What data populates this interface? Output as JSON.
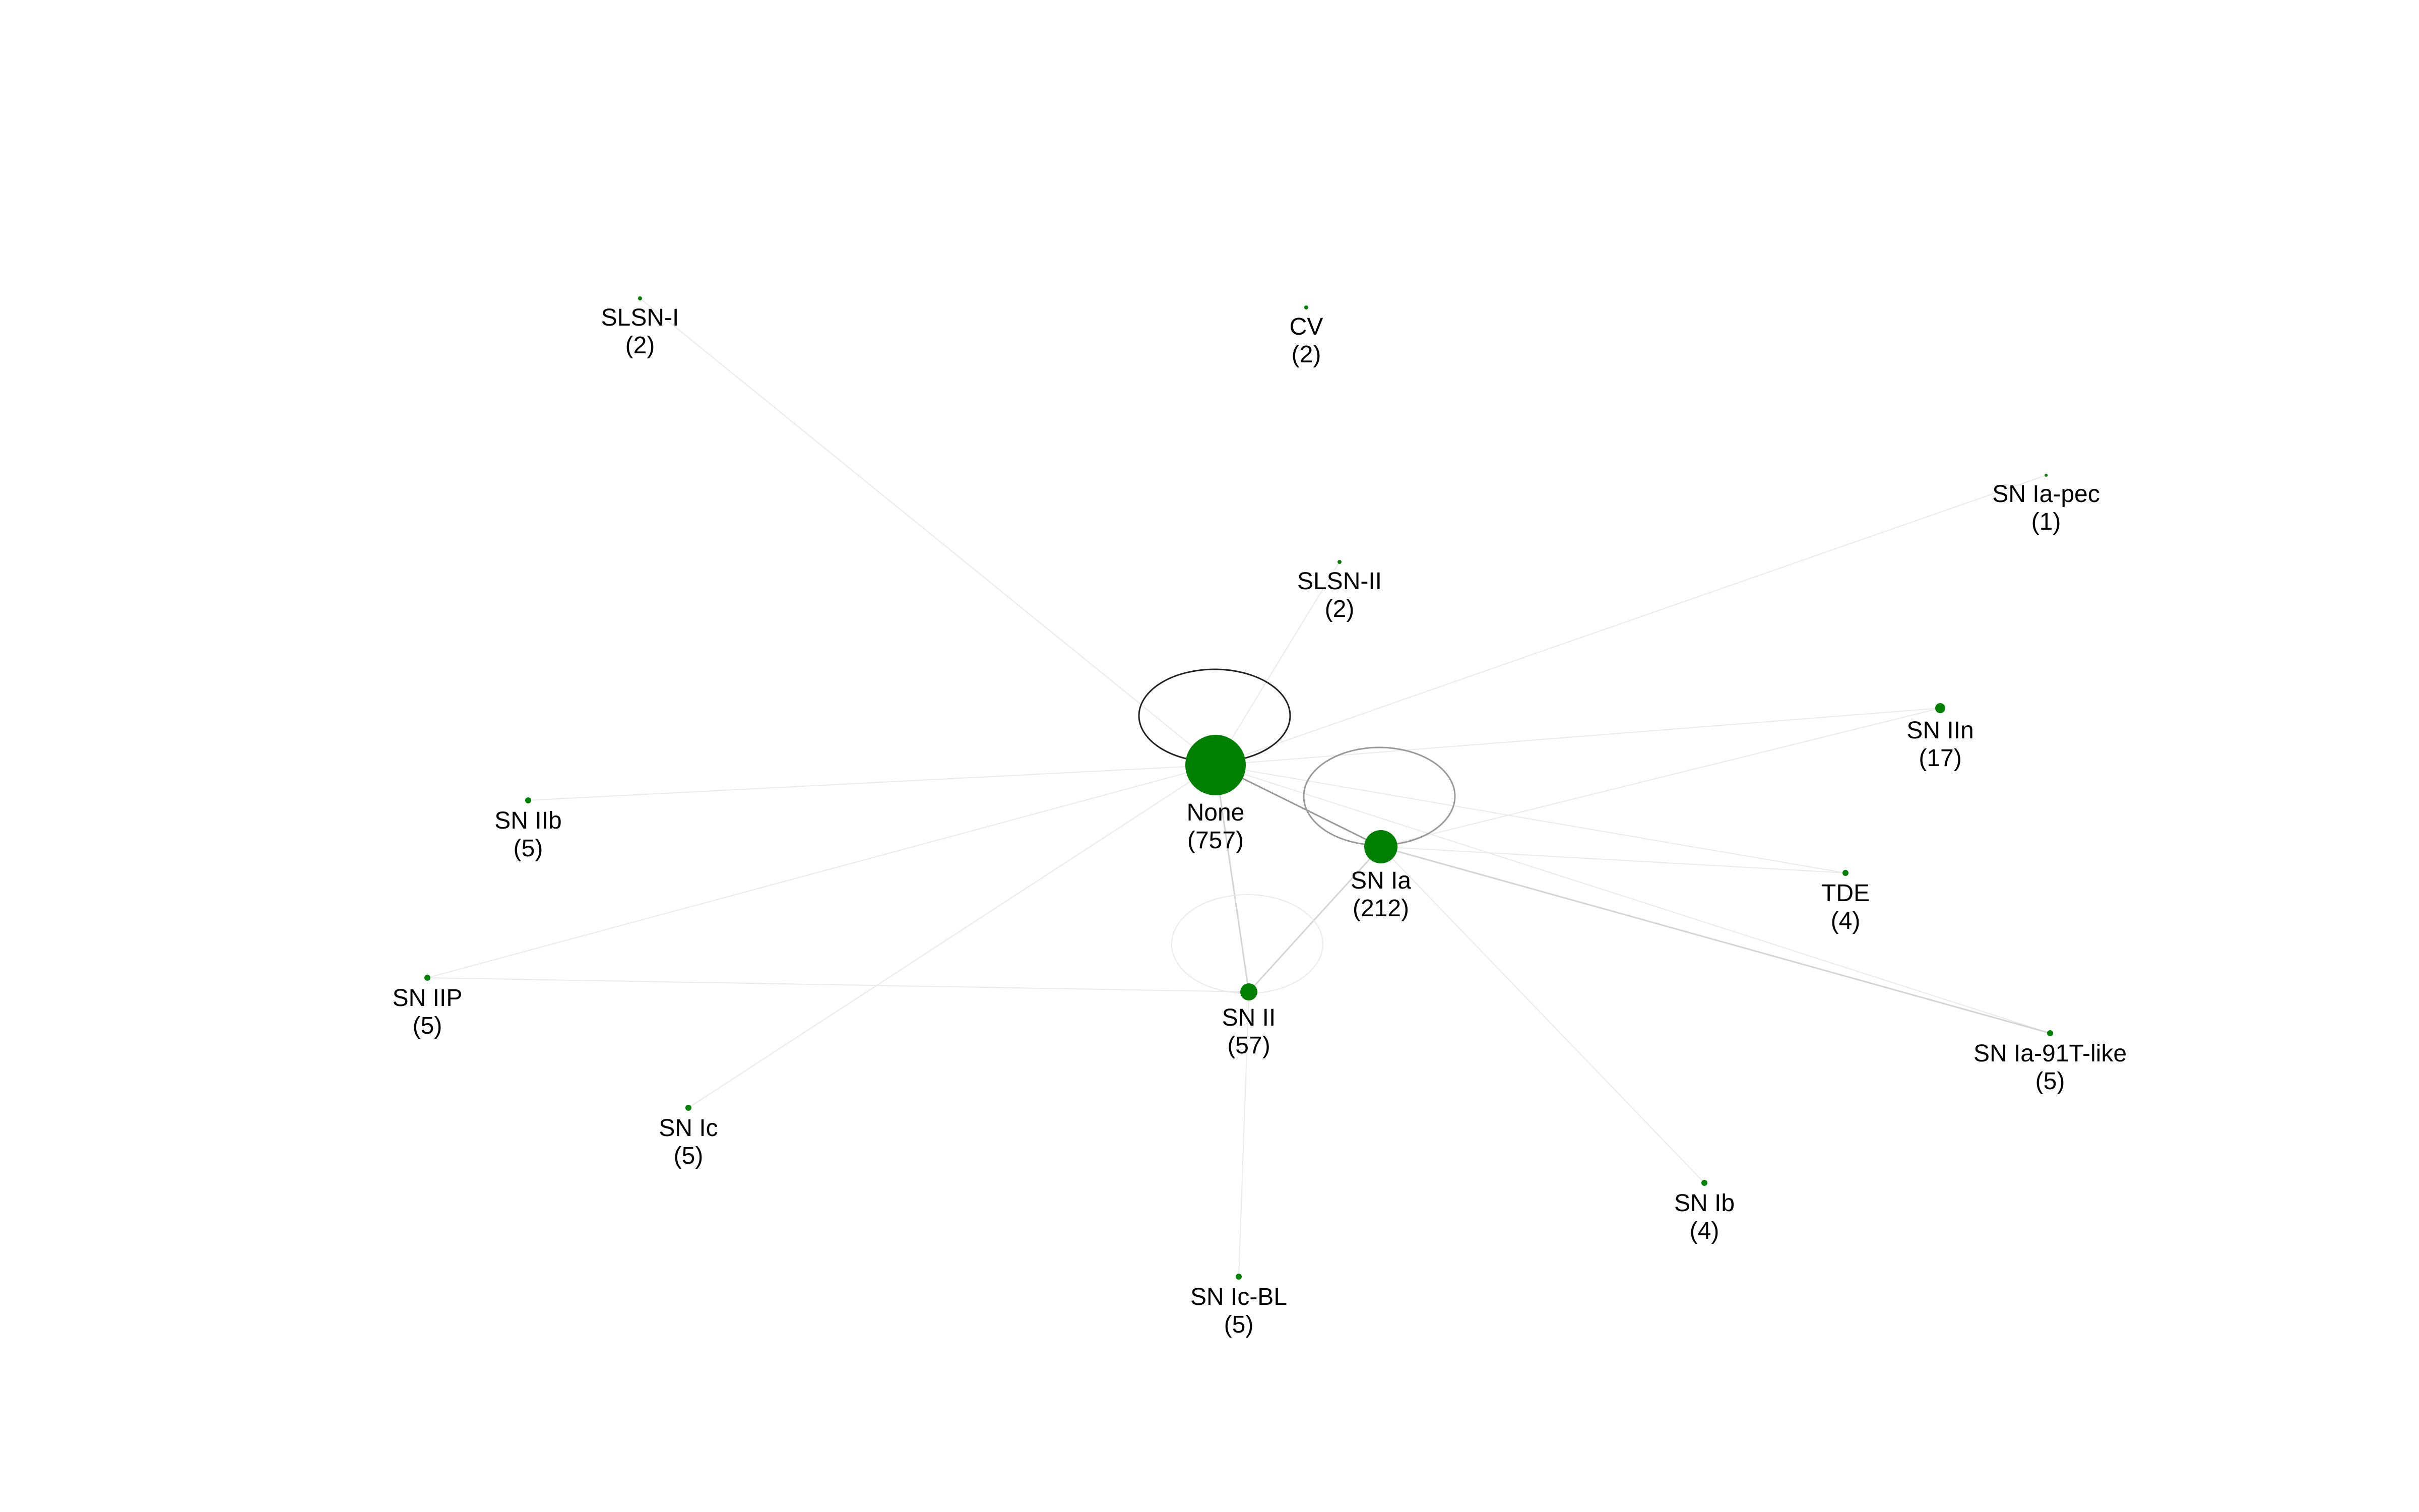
{
  "colors": {
    "node_fill": "#008000",
    "edge_dark": "#222222",
    "edge_mid": "#999999",
    "edge_light": "#d4d4d4",
    "edge_faint": "#eaeaea",
    "label": "#000000",
    "background": "#ffffff"
  },
  "nodes": [
    {
      "id": "none",
      "name": "None",
      "count": "(757)"
    },
    {
      "id": "sn-ia",
      "name": "SN Ia",
      "count": "(212)"
    },
    {
      "id": "sn-ii",
      "name": "SN II",
      "count": "(57)"
    },
    {
      "id": "sn-iin",
      "name": "SN IIn",
      "count": "(17)"
    },
    {
      "id": "slsn-i",
      "name": "SLSN-I",
      "count": "(2)"
    },
    {
      "id": "cv",
      "name": "CV",
      "count": "(2)"
    },
    {
      "id": "sn-ia-pec",
      "name": "SN Ia-pec",
      "count": "(1)"
    },
    {
      "id": "slsn-ii",
      "name": "SLSN-II",
      "count": "(2)"
    },
    {
      "id": "sn-iib",
      "name": "SN IIb",
      "count": "(5)"
    },
    {
      "id": "tde",
      "name": "TDE",
      "count": "(4)"
    },
    {
      "id": "sn-iip",
      "name": "SN IIP",
      "count": "(5)"
    },
    {
      "id": "sn-ia-91t-like",
      "name": "SN Ia-91T-like",
      "count": "(5)"
    },
    {
      "id": "sn-ic",
      "name": "SN Ic",
      "count": "(5)"
    },
    {
      "id": "sn-ib",
      "name": "SN Ib",
      "count": "(4)"
    },
    {
      "id": "sn-ic-bl",
      "name": "SN Ic-BL",
      "count": "(5)"
    }
  ],
  "edges": [
    {
      "from": "none",
      "to": "sn-ia",
      "weight": "mid"
    },
    {
      "from": "none",
      "to": "sn-ii",
      "weight": "light"
    },
    {
      "from": "sn-ia",
      "to": "sn-ii",
      "weight": "light"
    },
    {
      "from": "none",
      "to": "sn-iin",
      "weight": "faint"
    },
    {
      "from": "sn-ia",
      "to": "sn-iin",
      "weight": "faint"
    },
    {
      "from": "none",
      "to": "slsn-i",
      "weight": "faint"
    },
    {
      "from": "none",
      "to": "sn-ia-pec",
      "weight": "faint"
    },
    {
      "from": "none",
      "to": "slsn-ii",
      "weight": "faint"
    },
    {
      "from": "none",
      "to": "sn-iib",
      "weight": "faint"
    },
    {
      "from": "none",
      "to": "tde",
      "weight": "faint"
    },
    {
      "from": "sn-ia",
      "to": "tde",
      "weight": "faint"
    },
    {
      "from": "none",
      "to": "sn-ia-91t-like",
      "weight": "faint"
    },
    {
      "from": "sn-ia",
      "to": "sn-ia-91t-like",
      "weight": "light"
    },
    {
      "from": "none",
      "to": "sn-iip",
      "weight": "faint"
    },
    {
      "from": "sn-ii",
      "to": "sn-iip",
      "weight": "faint"
    },
    {
      "from": "none",
      "to": "sn-ic",
      "weight": "faint"
    },
    {
      "from": "sn-ia",
      "to": "sn-ib",
      "weight": "faint"
    },
    {
      "from": "sn-ii",
      "to": "sn-ic-bl",
      "weight": "faint"
    }
  ],
  "self_loops": [
    {
      "node": "none",
      "weight": "dark"
    },
    {
      "node": "sn-ia",
      "weight": "mid"
    },
    {
      "node": "sn-ii",
      "weight": "faint"
    }
  ]
}
